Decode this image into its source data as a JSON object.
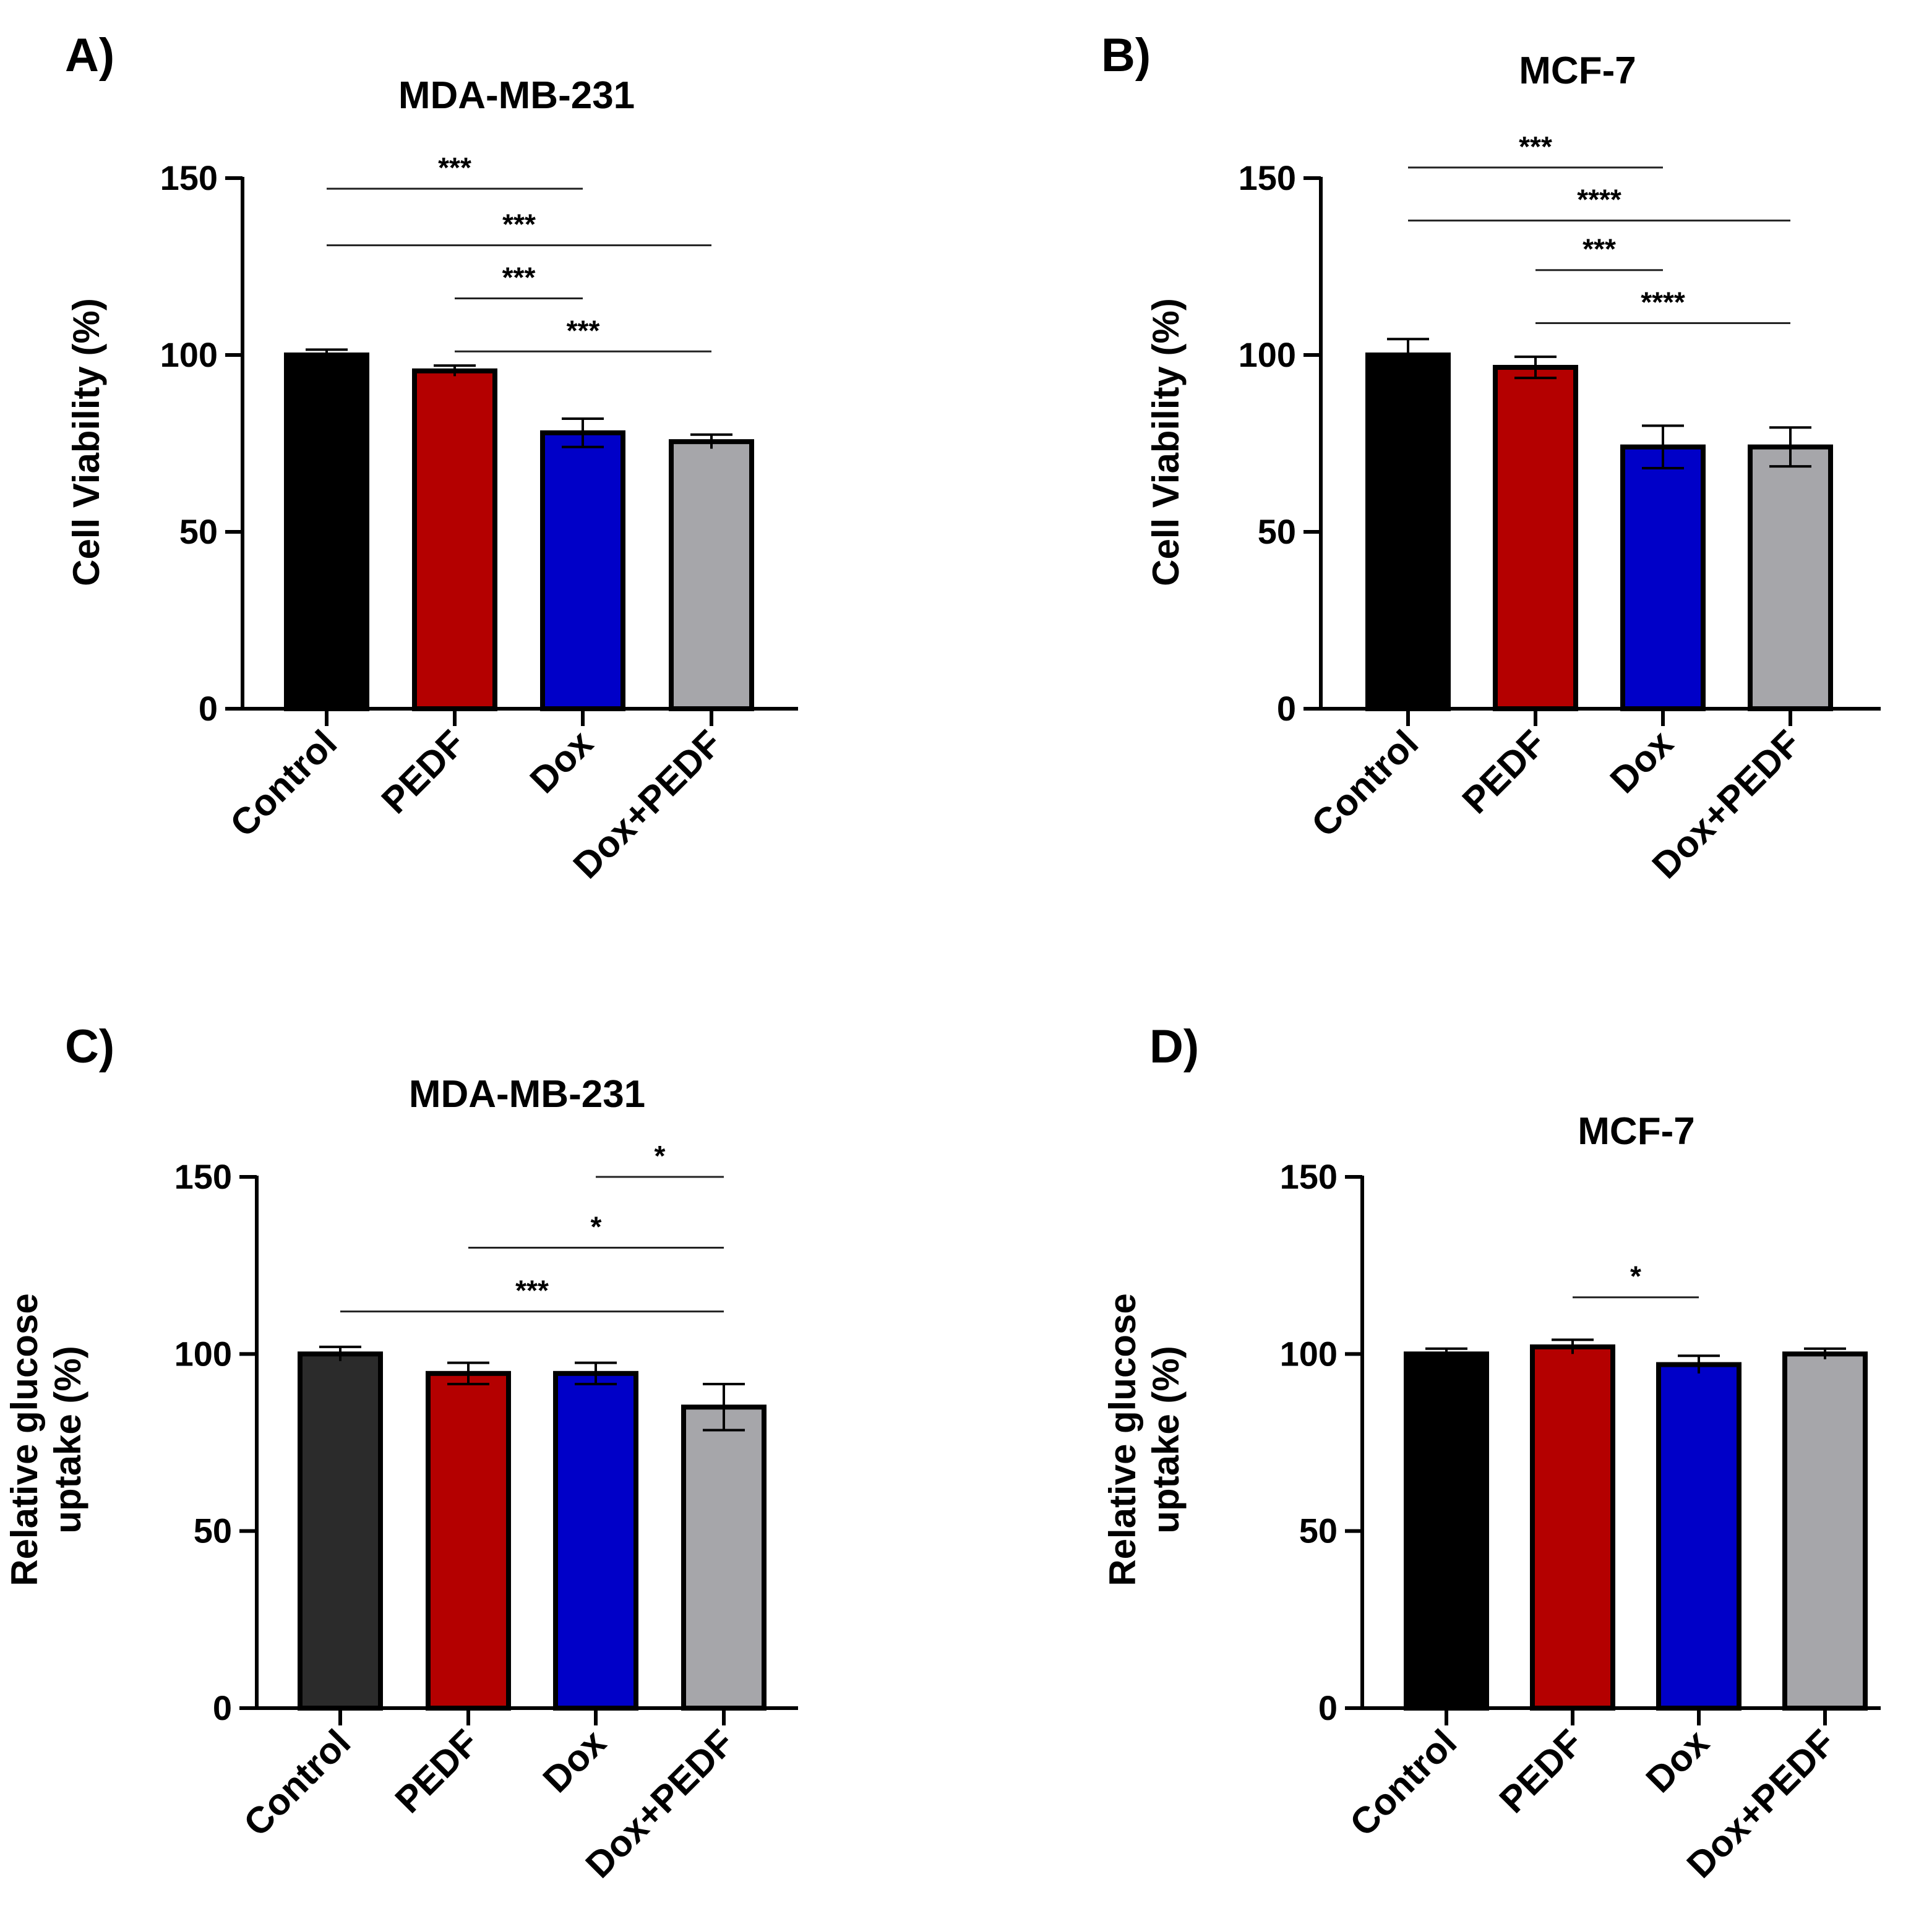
{
  "chart_data": [
    {
      "panel": "A)",
      "type": "bar",
      "title": "MDA-MB-231",
      "ylabel": "Cell Viability (%)",
      "xlabel": "",
      "ylim": [
        0,
        150
      ],
      "yticks": [
        0,
        50,
        100,
        150
      ],
      "categories": [
        "Control",
        "PEDF",
        "Dox",
        "Dox+PEDF"
      ],
      "values": [
        100,
        95.5,
        78,
        75.5
      ],
      "errors": [
        1.5,
        1.5,
        4,
        2
      ],
      "colors": [
        "#000000",
        "#b40000",
        "#0000c8",
        "#a6a6aa"
      ],
      "significance": [
        {
          "from": 0,
          "to": 2,
          "y": 147,
          "label": "***"
        },
        {
          "from": 0,
          "to": 3,
          "y": 131,
          "label": "***"
        },
        {
          "from": 1,
          "to": 2,
          "y": 116,
          "label": "***"
        },
        {
          "from": 1,
          "to": 3,
          "y": 101,
          "label": "***"
        }
      ]
    },
    {
      "panel": "B)",
      "type": "bar",
      "title": "MCF-7",
      "ylabel": "Cell Viability (%)",
      "xlabel": "",
      "ylim": [
        0,
        150
      ],
      "yticks": [
        0,
        50,
        100,
        150
      ],
      "categories": [
        "Control",
        "PEDF",
        "Dox",
        "Dox+PEDF"
      ],
      "values": [
        100,
        96.5,
        74,
        74
      ],
      "errors": [
        4.5,
        3,
        6,
        5.5
      ],
      "colors": [
        "#000000",
        "#b40000",
        "#0000c8",
        "#a6a6aa"
      ],
      "significance": [
        {
          "from": 0,
          "to": 2,
          "y": 153,
          "label": "***"
        },
        {
          "from": 0,
          "to": 3,
          "y": 138,
          "label": "****"
        },
        {
          "from": 1,
          "to": 2,
          "y": 124,
          "label": "***"
        },
        {
          "from": 1,
          "to": 3,
          "y": 109,
          "label": "****"
        }
      ]
    },
    {
      "panel": "C)",
      "type": "bar",
      "title": "MDA-MB-231",
      "ylabel": [
        "Relative glucose",
        "uptake (%)"
      ],
      "xlabel": "",
      "ylim": [
        0,
        150
      ],
      "yticks": [
        0,
        50,
        100,
        150
      ],
      "categories": [
        "Control",
        "PEDF",
        "Dox",
        "Dox+PEDF"
      ],
      "values": [
        100,
        94.5,
        94.5,
        85
      ],
      "errors": [
        2,
        3,
        3,
        6.5
      ],
      "colors": [
        "#2b2b2b",
        "#b40000",
        "#0000c8",
        "#a6a6aa"
      ],
      "significance": [
        {
          "from": 2,
          "to": 3,
          "y": 150,
          "label": "*"
        },
        {
          "from": 1,
          "to": 3,
          "y": 130,
          "label": "*"
        },
        {
          "from": 0,
          "to": 3,
          "y": 112,
          "label": "***"
        }
      ]
    },
    {
      "panel": "D)",
      "type": "bar",
      "title": "MCF-7",
      "ylabel": [
        "Relative glucose",
        "uptake (%)"
      ],
      "xlabel": "",
      "ylim": [
        0,
        150
      ],
      "yticks": [
        0,
        50,
        100,
        150
      ],
      "categories": [
        "Control",
        "PEDF",
        "Dox",
        "Dox+PEDF"
      ],
      "values": [
        100,
        102,
        97,
        100
      ],
      "errors": [
        1.5,
        2,
        2.5,
        1.5
      ],
      "colors": [
        "#000000",
        "#b40000",
        "#0000c8",
        "#a6a6aa"
      ],
      "significance": [
        {
          "from": 1,
          "to": 2,
          "y": 116,
          "label": "*"
        }
      ]
    }
  ]
}
